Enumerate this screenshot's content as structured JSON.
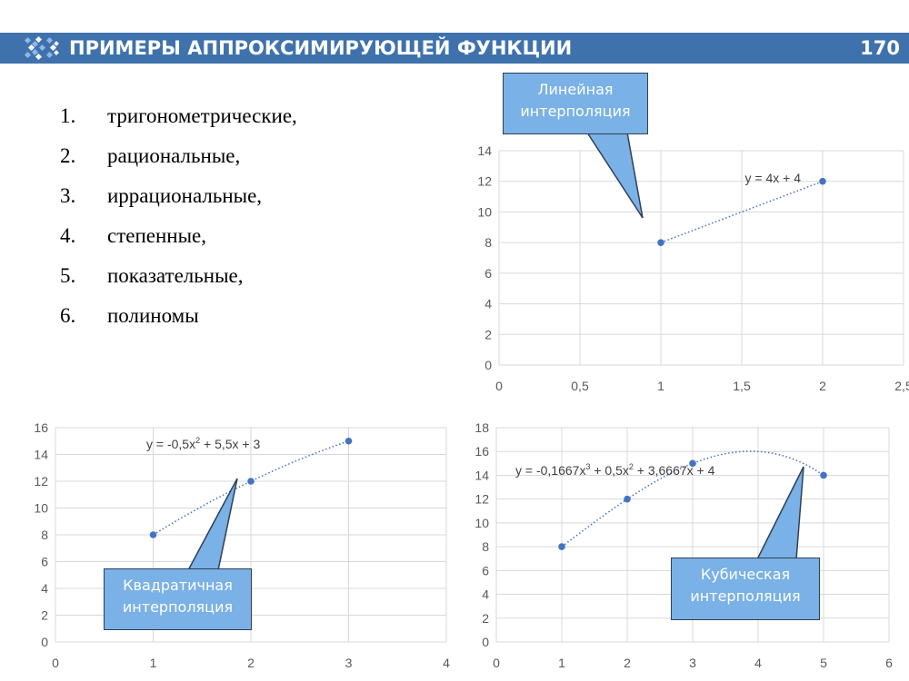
{
  "header": {
    "title": "ПРИМЕРЫ АППРОКСИМИРУЮЩЕЙ ФУНКЦИИ",
    "page_number": "170"
  },
  "list": {
    "items": [
      {
        "num": "1.",
        "text": "тригонометрические,"
      },
      {
        "num": "2.",
        "text": "рациональные,"
      },
      {
        "num": "3.",
        "text": "иррациональные,"
      },
      {
        "num": "4.",
        "text": "степенные,"
      },
      {
        "num": "5.",
        "text": "показательные,"
      },
      {
        "num": "6.",
        "text": "полиномы"
      }
    ]
  },
  "callouts": {
    "linear": {
      "line1": "Линейная",
      "line2": "интерполяция"
    },
    "quadratic": {
      "line1": "Квадратичная",
      "line2": "интерполяция"
    },
    "cubic": {
      "line1": "Кубическая",
      "line2": "интерполяция"
    }
  },
  "colors": {
    "header_bg": "#3f72ad",
    "callout_bg": "#7ab1e6",
    "marker": "#4472c4",
    "grid": "#d9d9d9"
  },
  "chart_data": [
    {
      "type": "scatter",
      "name": "linear",
      "points": [
        [
          1,
          8
        ],
        [
          2,
          12
        ]
      ],
      "trendline": {
        "kind": "polynomial",
        "coef": [
          4,
          4
        ],
        "range": [
          1,
          2
        ]
      },
      "equation_label": {
        "base": "y = 4x + 4",
        "parts": []
      },
      "xlim": [
        0,
        2.5
      ],
      "ylim": [
        0,
        14
      ],
      "xticks": [
        "0",
        "0,5",
        "1",
        "1,5",
        "2",
        "2,5"
      ],
      "yticks": [
        "0",
        "2",
        "4",
        "6",
        "8",
        "10",
        "12",
        "14"
      ],
      "grid": true
    },
    {
      "type": "scatter",
      "name": "quadratic",
      "points": [
        [
          1,
          8
        ],
        [
          2,
          12
        ],
        [
          3,
          15
        ]
      ],
      "trendline": {
        "kind": "polynomial",
        "coef": [
          -0.5,
          5.5,
          3
        ],
        "range": [
          1,
          3
        ]
      },
      "equation_label": {
        "base": "y = -0,5x",
        "parts": [
          [
            "sup",
            "2"
          ],
          [
            "txt",
            " + 5,5x + 3"
          ]
        ]
      },
      "xlim": [
        0,
        4
      ],
      "ylim": [
        0,
        16
      ],
      "xticks": [
        "0",
        "1",
        "2",
        "3",
        "4"
      ],
      "yticks": [
        "0",
        "2",
        "4",
        "6",
        "8",
        "10",
        "12",
        "14",
        "16"
      ],
      "grid": true
    },
    {
      "type": "scatter",
      "name": "cubic",
      "points": [
        [
          1,
          8
        ],
        [
          2,
          12
        ],
        [
          3,
          15
        ],
        [
          5,
          14
        ]
      ],
      "trendline": {
        "kind": "polynomial",
        "coef": [
          -0.1667,
          0.5,
          3.6667,
          4
        ],
        "range": [
          1,
          5
        ]
      },
      "equation_label": {
        "base": "y = -0,1667x",
        "parts": [
          [
            "sup",
            "3"
          ],
          [
            "txt",
            " + 0,5x"
          ],
          [
            "sup",
            "2"
          ],
          [
            "txt",
            " + 3,6667x + 4"
          ]
        ]
      },
      "xlim": [
        0,
        6
      ],
      "ylim": [
        0,
        18
      ],
      "xticks": [
        "0",
        "1",
        "2",
        "3",
        "4",
        "5",
        "6"
      ],
      "yticks": [
        "0",
        "2",
        "4",
        "6",
        "8",
        "10",
        "12",
        "14",
        "16",
        "18"
      ],
      "grid": true
    }
  ]
}
